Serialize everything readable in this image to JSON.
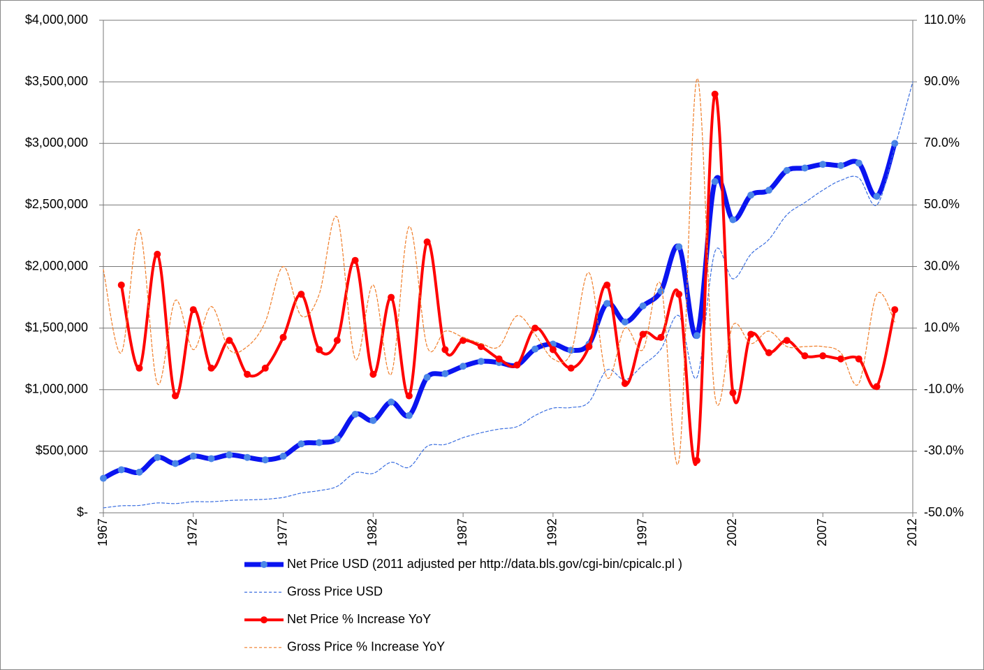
{
  "chart_data": {
    "type": "line",
    "x": [
      1967,
      1968,
      1969,
      1970,
      1971,
      1972,
      1973,
      1974,
      1975,
      1976,
      1977,
      1978,
      1979,
      1980,
      1981,
      1982,
      1983,
      1984,
      1985,
      1986,
      1987,
      1988,
      1989,
      1990,
      1991,
      1992,
      1993,
      1994,
      1995,
      1996,
      1997,
      1998,
      1999,
      2000,
      2001,
      2002,
      2003,
      2004,
      2005,
      2006,
      2007,
      2008,
      2009,
      2010,
      2011,
      2012
    ],
    "xlim": [
      1967,
      2012
    ],
    "xticks": [
      1967,
      1972,
      1977,
      1982,
      1987,
      1992,
      1997,
      2002,
      2007,
      2012
    ],
    "ylim": [
      0,
      4000000
    ],
    "yticks": [
      {
        "value": 0,
        "label": "$-"
      },
      {
        "value": 500000,
        "label": "$500,000"
      },
      {
        "value": 1000000,
        "label": "$1,000,000"
      },
      {
        "value": 1500000,
        "label": "$1,500,000"
      },
      {
        "value": 2000000,
        "label": "$2,000,000"
      },
      {
        "value": 2500000,
        "label": "$2,500,000"
      },
      {
        "value": 3000000,
        "label": "$3,000,000"
      },
      {
        "value": 3500000,
        "label": "$3,500,000"
      },
      {
        "value": 4000000,
        "label": "$4,000,000"
      }
    ],
    "y2lim": [
      -50,
      110
    ],
    "y2ticks": [
      {
        "value": -50,
        "label": "-50.0%"
      },
      {
        "value": -30,
        "label": "-30.0%"
      },
      {
        "value": -10,
        "label": "-10.0%"
      },
      {
        "value": 10,
        "label": "10.0%"
      },
      {
        "value": 30,
        "label": "30.0%"
      },
      {
        "value": 50,
        "label": "50.0%"
      },
      {
        "value": 70,
        "label": "70.0%"
      },
      {
        "value": 90,
        "label": "90.0%"
      },
      {
        "value": 110,
        "label": "110.0%"
      }
    ],
    "grid": true,
    "legend": "bottom",
    "series": [
      {
        "name": "Net Price USD (2011 adjusted per http://data.bls.gov/cgi-bin/cpicalc.pl )",
        "color": "#0a14f0",
        "marker_color": "#4a86e8",
        "style": "solid",
        "marker": true,
        "values": [
          280000,
          350000,
          330000,
          450000,
          400000,
          460000,
          440000,
          470000,
          450000,
          430000,
          460000,
          560000,
          570000,
          600000,
          800000,
          750000,
          900000,
          790000,
          1100000,
          1130000,
          1190000,
          1230000,
          1220000,
          1200000,
          1330000,
          1370000,
          1320000,
          1370000,
          1700000,
          1550000,
          1680000,
          1800000,
          2160000,
          1440000,
          2690000,
          2380000,
          2580000,
          2620000,
          2780000,
          2800000,
          2830000,
          2820000,
          2840000,
          2570000,
          3000000,
          null
        ]
      },
      {
        "name": "Gross Price USD",
        "color": "#3a6ee0",
        "style": "dashed",
        "marker": false,
        "values": [
          40000,
          57000,
          60000,
          80000,
          75000,
          90000,
          90000,
          100000,
          105000,
          110000,
          125000,
          160000,
          180000,
          215000,
          325000,
          320000,
          410000,
          370000,
          540000,
          555000,
          610000,
          650000,
          680000,
          700000,
          790000,
          850000,
          855000,
          900000,
          1160000,
          1080000,
          1200000,
          1330000,
          1600000,
          1100000,
          2120000,
          1900000,
          2100000,
          2220000,
          2420000,
          2520000,
          2620000,
          2700000,
          2720000,
          2500000,
          2970000,
          3500000
        ]
      },
      {
        "name": "Net Price % Increase YoY",
        "color": "#ff0000",
        "marker_color": "#ff0000",
        "style": "solid",
        "marker": true,
        "axis": "y2",
        "values": [
          null,
          24,
          -3,
          34,
          -12,
          16,
          -3,
          6,
          -5,
          -3,
          7,
          21,
          3,
          6,
          32,
          -5,
          20,
          -12,
          38,
          3,
          6,
          4,
          0,
          -2,
          10,
          3,
          -3,
          4,
          24,
          -8,
          8,
          7,
          21,
          -33,
          86,
          -11,
          8,
          2,
          6,
          1,
          1,
          0,
          0,
          -9,
          16,
          null
        ]
      },
      {
        "name": "Gross Price % Increase YoY",
        "color": "#f07d28",
        "style": "dashed",
        "marker": false,
        "axis": "y2",
        "values": [
          29,
          2,
          42,
          -8,
          19,
          3,
          17,
          3,
          4,
          12,
          30,
          14,
          21,
          46,
          0,
          24,
          -5,
          43,
          4,
          9,
          7,
          5,
          4,
          14,
          8,
          0,
          2,
          28,
          -6,
          10,
          3,
          24,
          -33,
          91,
          -12,
          11,
          5,
          9,
          4,
          4,
          4,
          2,
          -8,
          21,
          12,
          null
        ]
      }
    ]
  }
}
